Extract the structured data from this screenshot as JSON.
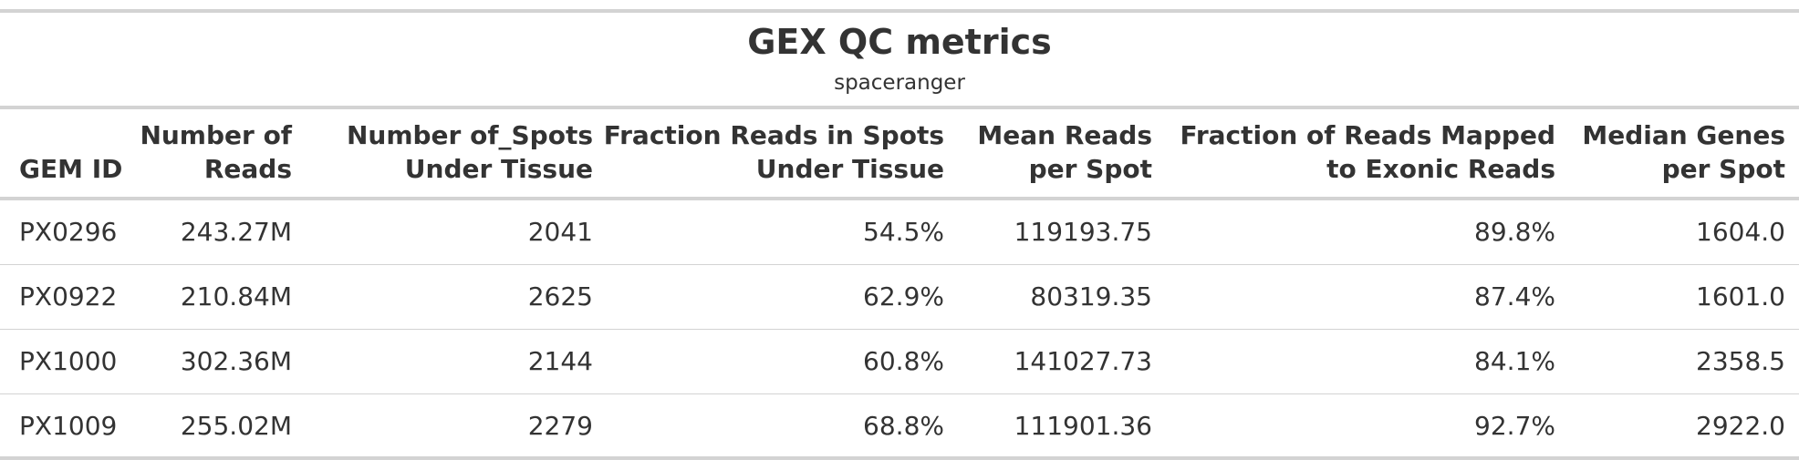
{
  "chart_data": {
    "type": "table",
    "title": "GEX QC metrics",
    "subtitle": "spaceranger",
    "columns": [
      {
        "line1": "",
        "line2": "GEM ID"
      },
      {
        "line1": "Number of",
        "line2": "Reads"
      },
      {
        "line1": "Number of_Spots",
        "line2": "Under Tissue"
      },
      {
        "line1": "Fraction Reads in Spots",
        "line2": "Under Tissue"
      },
      {
        "line1": "Mean Reads",
        "line2": "per Spot"
      },
      {
        "line1": "Fraction of Reads Mapped",
        "line2": "to Exonic Reads"
      },
      {
        "line1": "Median Genes",
        "line2": "per Spot"
      }
    ],
    "rows": [
      [
        "PX0296",
        "243.27M",
        "2041",
        "54.5%",
        "119193.75",
        "89.8%",
        "1604.0"
      ],
      [
        "PX0922",
        "210.84M",
        "2625",
        "62.9%",
        "80319.35",
        "87.4%",
        "1601.0"
      ],
      [
        "PX1000",
        "302.36M",
        "2144",
        "60.8%",
        "141027.73",
        "84.1%",
        "2358.5"
      ],
      [
        "PX1009",
        "255.02M",
        "2279",
        "68.8%",
        "111901.36",
        "92.7%",
        "2922.0"
      ]
    ]
  }
}
